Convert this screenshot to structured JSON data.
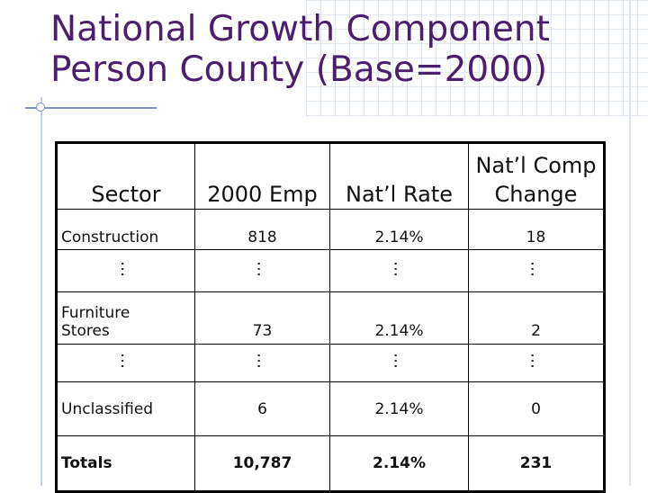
{
  "title": {
    "line1": "National Growth Component",
    "line2": "Person County (Base=2000)"
  },
  "table": {
    "headers": {
      "sector": "Sector",
      "emp": "2000 Emp",
      "rate": "Nat’l Rate",
      "change_line1": "Nat’l Comp",
      "change_line2": "Change"
    },
    "ellipsis": "…",
    "rows": [
      {
        "sector": "Construction",
        "emp": "818",
        "rate": "2.14%",
        "change": "18"
      },
      {
        "sector_line1": "Furniture",
        "sector_line2": "Stores",
        "emp": "73",
        "rate": "2.14%",
        "change": "2"
      },
      {
        "sector": "Unclassified",
        "emp": "6",
        "rate": "2.14%",
        "change": "0"
      }
    ],
    "totals": {
      "sector": "Totals",
      "emp": "10,787",
      "rate": "2.14%",
      "change": "231"
    }
  },
  "colors": {
    "title": "#4b1f6d",
    "accent_line": "#7f93c7"
  }
}
